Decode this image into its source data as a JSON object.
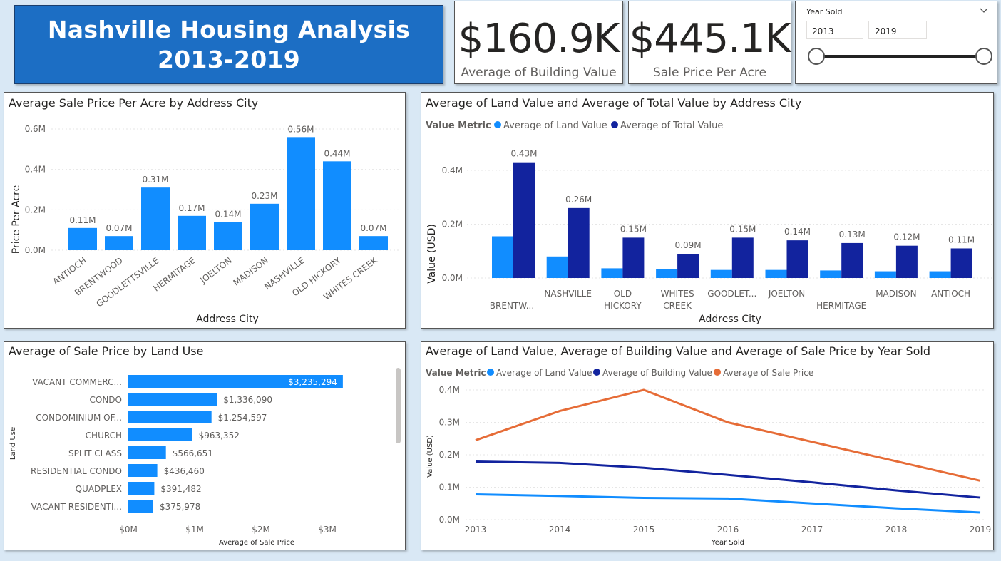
{
  "header": {
    "title_line1": "Nashville Housing Analysis",
    "title_line2": "2013-2019"
  },
  "kpis": [
    {
      "value": "$160.9K",
      "label": "Average of Building Value"
    },
    {
      "value": "$445.1K",
      "label": "Sale Price Per Acre"
    }
  ],
  "slicer": {
    "title": "Year Sold",
    "from": "2013",
    "to": "2019",
    "chevron_icon": "chevron-down-icon",
    "range": [
      2013,
      2019
    ]
  },
  "colors": {
    "light_blue": "#118dff",
    "dark_blue": "#12239e",
    "orange": "#e66c37",
    "title_bg": "#1c6ec4"
  },
  "chart_data": [
    {
      "type": "bar",
      "title": "Average Sale Price Per Acre by Address City",
      "xlabel": "Address City",
      "ylabel": "Price Per Acre",
      "categories": [
        "ANTIOCH",
        "BRENTWOOD",
        "GOODLETTSVILLE",
        "HERMITAGE",
        "JOELTON",
        "MADISON",
        "NASHVILLE",
        "OLD HICKORY",
        "WHITES CREEK"
      ],
      "values": [
        0.11,
        0.07,
        0.31,
        0.17,
        0.14,
        0.23,
        0.56,
        0.44,
        0.07
      ],
      "data_labels": [
        "0.11M",
        "0.07M",
        "0.31M",
        "0.17M",
        "0.14M",
        "0.23M",
        "0.56M",
        "0.44M",
        "0.07M"
      ],
      "y_ticks": [
        "0.0M",
        "0.2M",
        "0.4M",
        "0.6M"
      ],
      "ylim": [
        0,
        0.6
      ]
    },
    {
      "type": "bar",
      "title": "Average of Land Value and Average of Total Value by Address City",
      "legend_title": "Value Metric",
      "xlabel": "Address City",
      "ylabel": "Value (USD)",
      "categories": [
        [
          "BRENTW..."
        ],
        [
          "NASHVILLE"
        ],
        [
          "OLD",
          "HICKORY"
        ],
        [
          "WHITES",
          "CREEK"
        ],
        [
          "GOODLET..."
        ],
        [
          "JOELTON"
        ],
        [
          "HERMITAGE"
        ],
        [
          "MADISON"
        ],
        [
          "ANTIOCH"
        ]
      ],
      "series": [
        {
          "name": "Average of Land Value",
          "values": [
            0.155,
            0.08,
            0.036,
            0.032,
            0.03,
            0.03,
            0.028,
            0.025,
            0.025
          ]
        },
        {
          "name": "Average of Total Value",
          "values": [
            0.43,
            0.26,
            0.15,
            0.09,
            0.15,
            0.14,
            0.13,
            0.12,
            0.11
          ],
          "data_labels": [
            "0.43M",
            "0.26M",
            "0.15M",
            "0.09M",
            "0.15M",
            "0.14M",
            "0.13M",
            "0.12M",
            "0.11M"
          ]
        }
      ],
      "y_ticks": [
        "0.0M",
        "0.2M",
        "0.4M"
      ],
      "ylim": [
        0,
        0.45
      ],
      "legend_position": "top-left"
    },
    {
      "type": "bar",
      "orientation": "horizontal",
      "title": "Average of Sale Price by Land Use",
      "xlabel": "Average of Sale Price",
      "ylabel": "Land Use",
      "categories": [
        "VACANT COMMERC...",
        "CONDO",
        "CONDOMINIUM OF...",
        "CHURCH",
        "SPLIT CLASS",
        "RESIDENTIAL CONDO",
        "QUADPLEX",
        "VACANT RESIDENTI..."
      ],
      "values": [
        3235294,
        1336090,
        1254597,
        963352,
        566651,
        436460,
        391482,
        375978
      ],
      "data_labels": [
        "$3,235,294",
        "$1,336,090",
        "$1,254,597",
        "$963,352",
        "$566,651",
        "$436,460",
        "$391,482",
        "$375,978"
      ],
      "x_ticks": [
        "$0M",
        "$1M",
        "$2M",
        "$3M"
      ],
      "xlim": [
        0,
        3.3
      ]
    },
    {
      "type": "line",
      "title": "Average of Land Value, Average of Building Value and Average of Sale Price by Year Sold",
      "legend_title": "Value Metric",
      "xlabel": "Year Sold",
      "ylabel": "Value (USD)",
      "x": [
        "2013",
        "2014",
        "2015",
        "2016",
        "2017",
        "2018",
        "2019"
      ],
      "series": [
        {
          "name": "Average of Land Value",
          "values": [
            0.078,
            0.073,
            0.067,
            0.065,
            0.05,
            0.035,
            0.022
          ]
        },
        {
          "name": "Average of Building Value",
          "values": [
            0.179,
            0.175,
            0.16,
            0.138,
            0.115,
            0.09,
            0.068
          ]
        },
        {
          "name": "Average of Sale Price",
          "values": [
            0.245,
            0.335,
            0.4,
            0.3,
            0.24,
            0.18,
            0.12
          ]
        }
      ],
      "y_ticks": [
        "0.0M",
        "0.1M",
        "0.2M",
        "0.3M",
        "0.4M"
      ],
      "ylim": [
        0,
        0.4
      ],
      "grid": true,
      "legend_position": "top-left"
    }
  ]
}
